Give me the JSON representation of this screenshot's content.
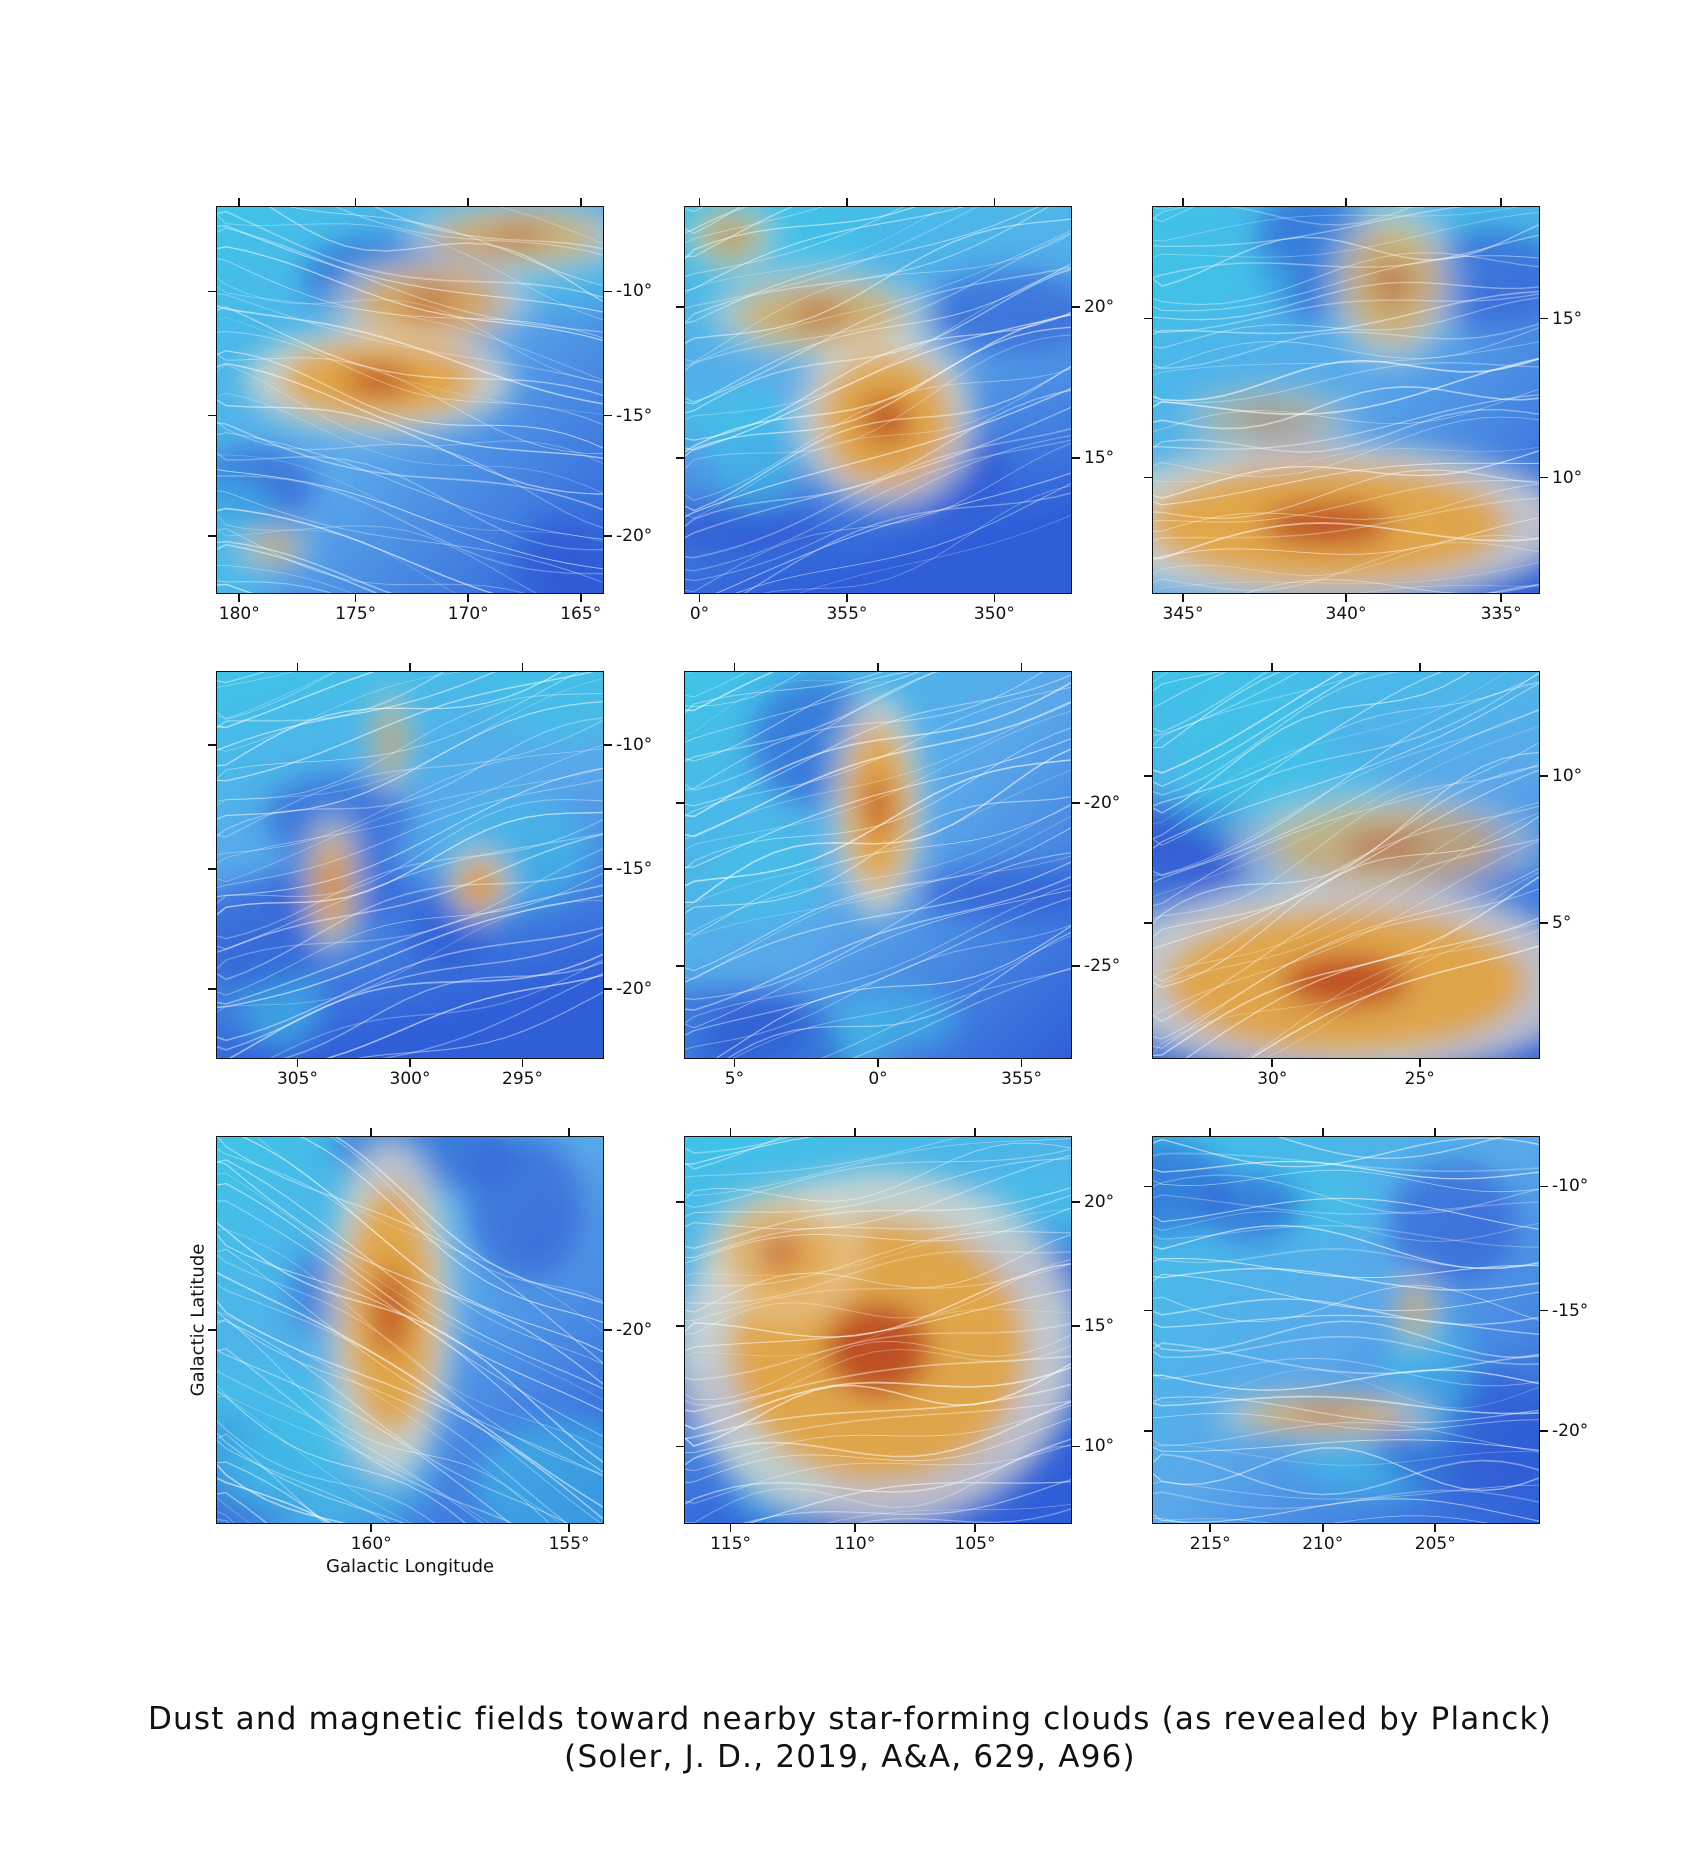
{
  "figure": {
    "caption_line1": "Dust and magnetic fields toward nearby star-forming clouds (as revealed by Planck)",
    "caption_line2": "(Soler, J. D., 2019, A&A, 629, A96)",
    "xlabel": "Galactic Longitude",
    "ylabel": "Galactic Latitude",
    "colors": {
      "low_density": "#2f5fd8",
      "mid_density": "#3fc4e8",
      "transition": "#e8dcc8",
      "high_density": "#e3a23a",
      "peak_density": "#b5381c",
      "streamlines": "#ffffff"
    }
  },
  "panels": [
    {
      "xticks": [
        "180°",
        "175°",
        "170°",
        "165°"
      ],
      "yticks": [
        "-10°",
        "-15°",
        "-20°"
      ]
    },
    {
      "xticks": [
        "0°",
        "355°",
        "350°"
      ],
      "yticks": [
        "20°",
        "15°"
      ]
    },
    {
      "xticks": [
        "345°",
        "340°",
        "335°"
      ],
      "yticks": [
        "15°",
        "10°"
      ]
    },
    {
      "xticks": [
        "305°",
        "300°",
        "295°"
      ],
      "yticks": [
        "-10°",
        "-15°",
        "-20°"
      ]
    },
    {
      "xticks": [
        "5°",
        "0°",
        "355°"
      ],
      "yticks": [
        "-20°",
        "-25°"
      ]
    },
    {
      "xticks": [
        "30°",
        "25°"
      ],
      "yticks": [
        "10°",
        "5°"
      ]
    },
    {
      "xticks": [
        "160°",
        "155°"
      ],
      "yticks": [
        "-20°"
      ]
    },
    {
      "xticks": [
        "115°",
        "110°",
        "105°"
      ],
      "yticks": [
        "20°",
        "15°",
        "10°"
      ]
    },
    {
      "xticks": [
        "215°",
        "210°",
        "205°"
      ],
      "yticks": [
        "-10°",
        "-15°",
        "-20°"
      ]
    }
  ]
}
